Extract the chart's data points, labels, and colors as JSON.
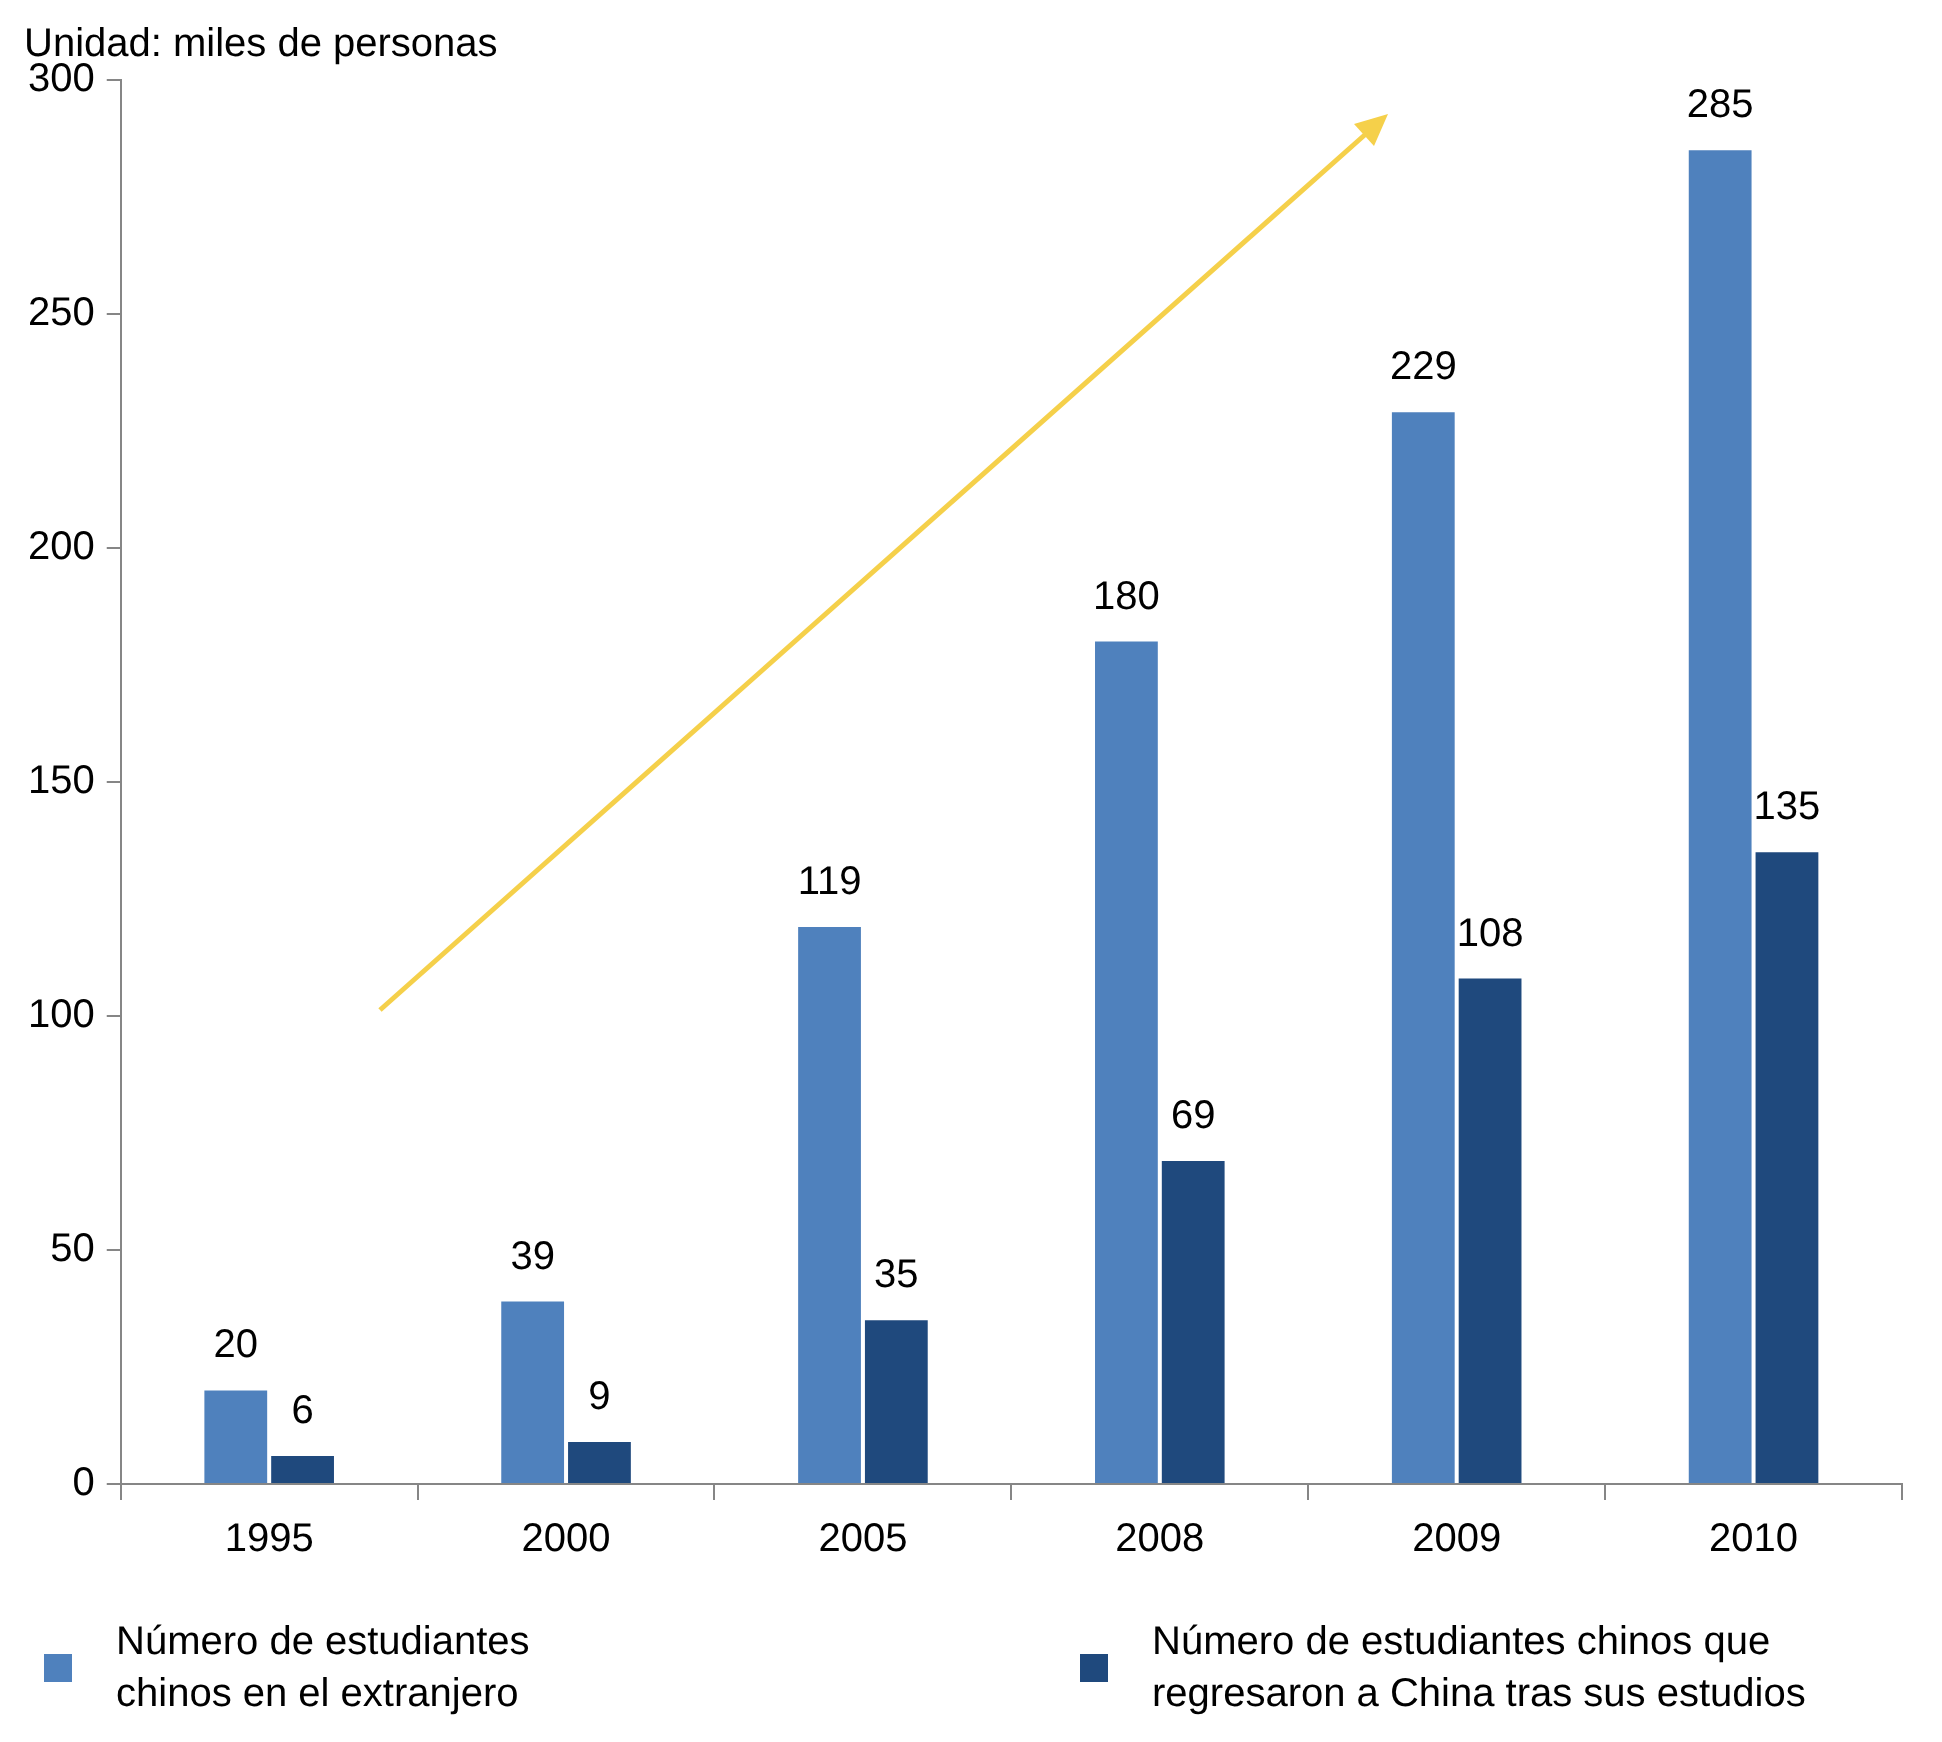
{
  "chart_data": {
    "type": "bar",
    "ylabel": "Unidad: miles de personas",
    "categories": [
      "1995",
      "2000",
      "2005",
      "2008",
      "2009",
      "2010"
    ],
    "series": [
      {
        "name": "Número de estudiantes chinos en el extranjero",
        "color": "#4f81bd",
        "values": [
          20,
          39,
          119,
          180,
          229,
          285
        ]
      },
      {
        "name": "Número de estudiantes chinos que regresaron a China tras sus estudios",
        "color": "#1f497d",
        "values": [
          6,
          9,
          35,
          69,
          108,
          135
        ]
      }
    ],
    "ylim": [
      0,
      300
    ],
    "yticks": [
      0,
      50,
      100,
      150,
      200,
      250,
      300
    ],
    "grid": false,
    "data_labels": true,
    "legend": "bottom"
  }
}
